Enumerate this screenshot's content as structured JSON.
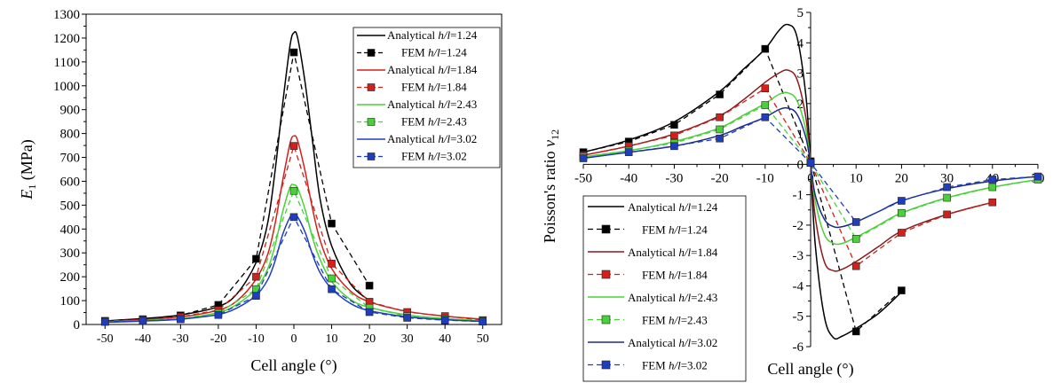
{
  "chart_data": [
    {
      "type": "line",
      "xlabel": "Cell angle (°)",
      "ylabel_main": "E",
      "ylabel_sub": "1",
      "ylabel_unit": " (MPa)",
      "xlim": [
        -55,
        55
      ],
      "ylim": [
        0,
        1300
      ],
      "xticks": [
        -50,
        -40,
        -30,
        -20,
        -10,
        0,
        10,
        20,
        30,
        40,
        50
      ],
      "yticks": [
        0,
        100,
        200,
        300,
        400,
        500,
        600,
        700,
        800,
        900,
        1000,
        1100,
        1200,
        1300
      ],
      "legend_position": "top-right",
      "series": [
        {
          "name": "Analytical h/l=1.24",
          "label_prefix": "Analytical ",
          "label_ratio": "h/l",
          "label_value": "=1.24",
          "kind": "analytical",
          "color": "#000000",
          "x": [
            -50,
            -40,
            -30,
            -20,
            -15,
            -10,
            -7,
            -5,
            -3,
            -1,
            0,
            1,
            3,
            5,
            7,
            10,
            15,
            20
          ],
          "y": [
            15,
            25,
            40,
            75,
            130,
            260,
            420,
            640,
            920,
            1170,
            1222,
            1200,
            1010,
            760,
            520,
            330,
            170,
            100
          ]
        },
        {
          "name": "FEM h/l=1.24",
          "label_prefix": "FEM ",
          "label_ratio": "h/l",
          "label_value": "=1.24",
          "kind": "fem",
          "color": "#000000",
          "x": [
            -50,
            -40,
            -30,
            -20,
            -10,
            0,
            10,
            20
          ],
          "y": [
            15,
            22,
            38,
            82,
            275,
            1140,
            423,
            163
          ]
        },
        {
          "name": "Analytical h/l=1.84",
          "label_prefix": "Analytical ",
          "label_ratio": "h/l",
          "label_value": "=1.84",
          "kind": "analytical",
          "color": "#d0211c",
          "x": [
            -50,
            -40,
            -30,
            -20,
            -15,
            -10,
            -7,
            -5,
            -3,
            -1,
            0,
            1,
            3,
            5,
            7,
            10,
            15,
            20,
            30,
            40,
            50
          ],
          "y": [
            12,
            20,
            32,
            60,
            100,
            190,
            290,
            420,
            600,
            760,
            790,
            770,
            640,
            480,
            350,
            235,
            140,
            95,
            55,
            35,
            22
          ]
        },
        {
          "name": "FEM h/l=1.84",
          "label_prefix": "FEM ",
          "label_ratio": "h/l",
          "label_value": "=1.84",
          "kind": "fem",
          "color": "#d0211c",
          "x": [
            -50,
            -40,
            -30,
            -20,
            -10,
            0,
            10,
            20,
            30,
            40,
            50
          ],
          "y": [
            14,
            20,
            32,
            60,
            200,
            748,
            255,
            95,
            52,
            35,
            18
          ]
        },
        {
          "name": "Analytical h/l=2.43",
          "label_prefix": "Analytical ",
          "label_ratio": "h/l",
          "label_value": "=2.43",
          "kind": "analytical",
          "color": "#4ad13a",
          "x": [
            -50,
            -40,
            -30,
            -20,
            -15,
            -10,
            -7,
            -5,
            -3,
            -1,
            0,
            1,
            3,
            5,
            7,
            10,
            15,
            20,
            30,
            40,
            50
          ],
          "y": [
            10,
            16,
            25,
            50,
            85,
            150,
            230,
            330,
            470,
            575,
            585,
            570,
            480,
            360,
            270,
            180,
            105,
            72,
            40,
            25,
            15
          ]
        },
        {
          "name": "FEM h/l=2.43",
          "label_prefix": "FEM ",
          "label_ratio": "h/l",
          "label_value": "=2.43",
          "kind": "fem",
          "color": "#4ad13a",
          "x": [
            -50,
            -40,
            -30,
            -20,
            -10,
            0,
            10,
            20,
            30,
            40,
            50
          ],
          "y": [
            12,
            17,
            25,
            48,
            148,
            560,
            193,
            70,
            35,
            22,
            15
          ]
        },
        {
          "name": "Analytical h/l=3.02",
          "label_prefix": "Analytical ",
          "label_ratio": "h/l",
          "label_value": "=3.02",
          "kind": "analytical",
          "color": "#1f3ebf",
          "x": [
            -50,
            -40,
            -30,
            -20,
            -15,
            -10,
            -7,
            -5,
            -3,
            -1,
            0,
            1,
            3,
            5,
            7,
            10,
            15,
            20,
            30,
            40,
            50
          ],
          "y": [
            9,
            14,
            22,
            42,
            70,
            122,
            185,
            265,
            375,
            450,
            460,
            450,
            385,
            290,
            215,
            150,
            88,
            58,
            32,
            20,
            13
          ]
        },
        {
          "name": "FEM h/l=3.02",
          "label_prefix": "FEM ",
          "label_ratio": "h/l",
          "label_value": "=3.02",
          "kind": "fem",
          "color": "#1f3ebf",
          "x": [
            -50,
            -40,
            -30,
            -20,
            -10,
            0,
            10,
            20,
            30,
            40,
            50
          ],
          "y": [
            11,
            15,
            22,
            40,
            120,
            450,
            148,
            52,
            28,
            18,
            12
          ]
        }
      ]
    },
    {
      "type": "line",
      "xlabel": "Cell angle (°)",
      "ylabel_main": "Poisson's ratio ",
      "ylabel_greek": "ν",
      "ylabel_sub": "12",
      "xlim": [
        -50,
        50
      ],
      "ylim": [
        -6,
        5
      ],
      "xticks": [
        -50,
        -40,
        -30,
        -20,
        -10,
        0,
        10,
        20,
        30,
        40,
        50
      ],
      "yticks": [
        -6,
        -5,
        -4,
        -3,
        -2,
        -1,
        0,
        1,
        2,
        3,
        4,
        5
      ],
      "legend_position": "bottom-left",
      "series": [
        {
          "name": "Analytical h/l=1.24",
          "label_prefix": "Analytical ",
          "label_ratio": "h/l",
          "label_value": "=1.24",
          "kind": "analytical",
          "color": "#000000",
          "x": [
            -50,
            -40,
            -30,
            -20,
            -15,
            -10,
            -7,
            -5,
            -3,
            -1,
            0,
            1,
            3,
            5,
            7,
            10,
            15,
            20
          ],
          "y": [
            0.4,
            0.8,
            1.4,
            2.4,
            3.1,
            3.8,
            4.4,
            4.6,
            4.2,
            2.2,
            0,
            -2.6,
            -5.0,
            -5.7,
            -5.65,
            -5.4,
            -4.9,
            -4.2
          ]
        },
        {
          "name": "FEM h/l=1.24",
          "label_prefix": "FEM ",
          "label_ratio": "h/l",
          "label_value": "=1.24",
          "kind": "fem",
          "color": "#000000",
          "x": [
            -50,
            -40,
            -30,
            -20,
            -10,
            0,
            10,
            20
          ],
          "y": [
            0.4,
            0.75,
            1.3,
            2.3,
            3.8,
            0.1,
            -5.5,
            -4.15
          ]
        },
        {
          "name": "Analytical h/l=1.84",
          "label_prefix": "Analytical ",
          "label_ratio": "h/l",
          "label_value": "=1.84",
          "kind": "analytical",
          "color": "#8b1a1a",
          "x": [
            -50,
            -40,
            -30,
            -20,
            -15,
            -10,
            -7,
            -5,
            -3,
            -1,
            0,
            1,
            3,
            5,
            7,
            10,
            15,
            20,
            30,
            40
          ],
          "y": [
            0.3,
            0.6,
            1.0,
            1.6,
            2.1,
            2.7,
            3.0,
            3.1,
            2.8,
            1.5,
            0,
            -1.7,
            -3.2,
            -3.5,
            -3.45,
            -3.2,
            -2.7,
            -2.2,
            -1.65,
            -1.25
          ]
        },
        {
          "name": "FEM h/l=1.84",
          "label_prefix": "FEM ",
          "label_ratio": "h/l",
          "label_value": "=1.84",
          "kind": "fem",
          "color": "#d0211c",
          "x": [
            -50,
            -40,
            -30,
            -20,
            -10,
            0,
            10,
            20,
            30,
            40
          ],
          "y": [
            0.3,
            0.6,
            0.95,
            1.55,
            2.5,
            0.05,
            -3.35,
            -2.25,
            -1.65,
            -1.25
          ]
        },
        {
          "name": "Analytical h/l=2.43",
          "label_prefix": "Analytical ",
          "label_ratio": "h/l",
          "label_value": "=2.43",
          "kind": "analytical",
          "color": "#4ad13a",
          "x": [
            -50,
            -40,
            -30,
            -20,
            -15,
            -10,
            -7,
            -5,
            -3,
            -1,
            0,
            1,
            3,
            5,
            7,
            10,
            15,
            20,
            30,
            40,
            50
          ],
          "y": [
            0.25,
            0.45,
            0.75,
            1.2,
            1.6,
            2.0,
            2.3,
            2.35,
            2.1,
            1.1,
            0,
            -1.2,
            -2.3,
            -2.6,
            -2.6,
            -2.4,
            -2.0,
            -1.6,
            -1.1,
            -0.75,
            -0.5
          ]
        },
        {
          "name": "FEM h/l=2.43",
          "label_prefix": "FEM ",
          "label_ratio": "h/l",
          "label_value": "=2.43",
          "kind": "fem",
          "color": "#4ad13a",
          "x": [
            -50,
            -40,
            -30,
            -20,
            -10,
            0,
            10,
            20,
            30,
            40,
            50
          ],
          "y": [
            0.25,
            0.45,
            0.7,
            1.15,
            1.95,
            0.05,
            -2.45,
            -1.6,
            -1.1,
            -0.75,
            -0.5
          ]
        },
        {
          "name": "Analytical h/l=3.02",
          "label_prefix": "Analytical ",
          "label_ratio": "h/l",
          "label_value": "=3.02",
          "kind": "analytical",
          "color": "#1a2a8c",
          "x": [
            -50,
            -40,
            -30,
            -20,
            -15,
            -10,
            -7,
            -5,
            -3,
            -1,
            0,
            1,
            3,
            5,
            7,
            10,
            15,
            20,
            30,
            40,
            50
          ],
          "y": [
            0.2,
            0.4,
            0.6,
            0.95,
            1.25,
            1.55,
            1.8,
            1.85,
            1.65,
            0.85,
            0,
            -1.0,
            -1.8,
            -2.05,
            -2.05,
            -1.9,
            -1.55,
            -1.2,
            -0.8,
            -0.55,
            -0.4
          ]
        },
        {
          "name": "FEM h/l=3.02",
          "label_prefix": "FEM ",
          "label_ratio": "h/l",
          "label_value": "=3.02",
          "kind": "fem",
          "color": "#1f3ebf",
          "x": [
            -50,
            -40,
            -30,
            -20,
            -10,
            0,
            10,
            20,
            30,
            40,
            50
          ],
          "y": [
            0.2,
            0.4,
            0.6,
            0.85,
            1.55,
            0.05,
            -1.9,
            -1.2,
            -0.75,
            -0.5,
            -0.4
          ]
        }
      ]
    }
  ]
}
